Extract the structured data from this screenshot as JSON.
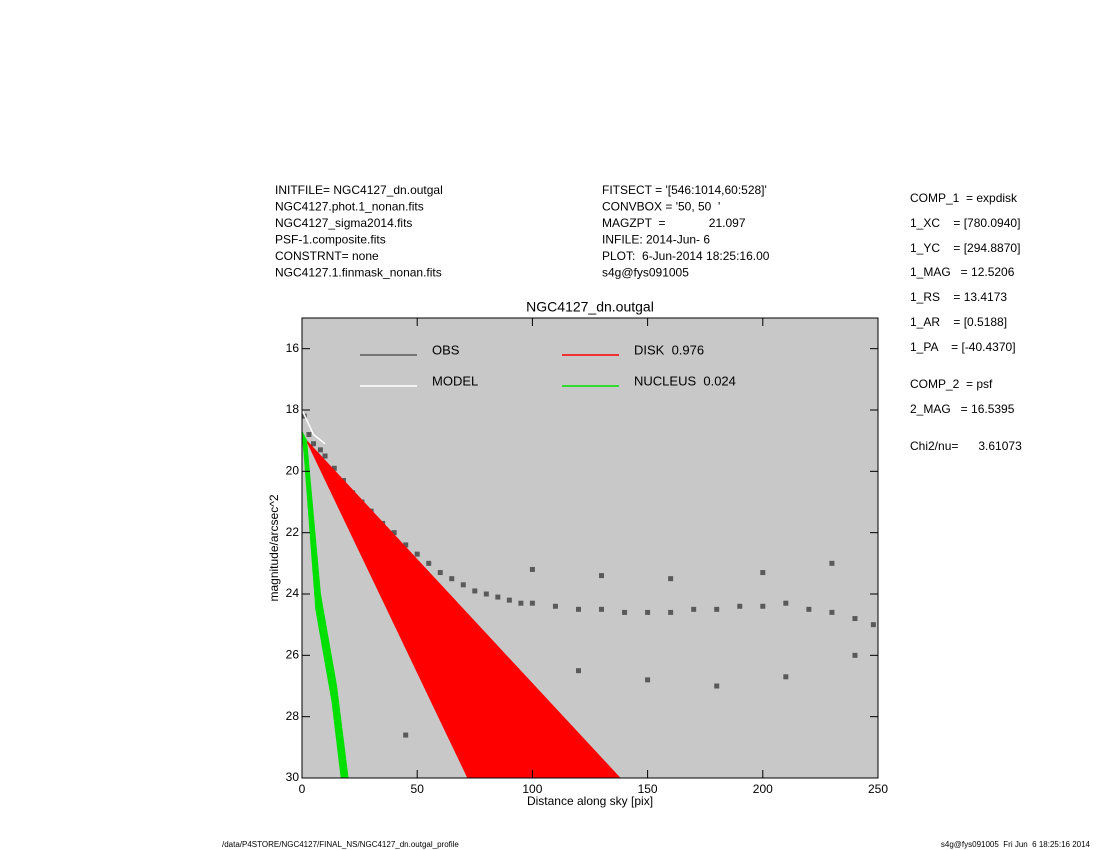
{
  "header": {
    "left": [
      "INITFILE= NGC4127_dn.outgal",
      "NGC4127.phot.1_nonan.fits",
      "NGC4127_sigma2014.fits",
      "PSF-1.composite.fits",
      "CONSTRNT= none",
      "NGC4127.1.finmask_nonan.fits"
    ],
    "middle": [
      "FITSECT = '[546:1014,60:528]'",
      "CONVBOX = '50, 50  '",
      "MAGZPT  =             21.097",
      "INFILE: 2014-Jun- 6",
      "PLOT:  6-Jun-2014 18:25:16.00",
      "s4g@fys091005"
    ],
    "right": [
      "COMP_1  = expdisk",
      "1_XC    = [780.0940]",
      "1_YC    = [294.8870]",
      "1_MAG   = 12.5206",
      "1_RS    = 13.4173",
      "1_AR    = [0.5188]",
      "1_PA    = [-40.4370]",
      "COMP_2  = psf",
      "2_MAG   = 16.5395",
      "Chi2/nu=      3.61073"
    ]
  },
  "footer": {
    "left": "/data/P4STORE/NGC4127/FINAL_NS/NGC4127_dn.outgal_profile",
    "right": "s4g@fys091005  Fri Jun  6 18:25:16 2014"
  },
  "chart_data": {
    "type": "scatter",
    "title": "NGC4127_dn.outgal",
    "x_label": "Distance along sky [pix]",
    "y_label": "magnitude/arcsec^2",
    "xlim": [
      0,
      250
    ],
    "xticks": [
      0,
      50,
      100,
      150,
      200,
      250
    ],
    "ylim": [
      30,
      15
    ],
    "yticks": [
      16,
      18,
      20,
      22,
      24,
      26,
      28,
      30
    ],
    "background": "#c8c8c8",
    "series": [
      {
        "name": "OBS",
        "color": "#5a5a5a",
        "kind": "points",
        "x": [
          1,
          3,
          5,
          8,
          10,
          14,
          18,
          22,
          26,
          30,
          35,
          40,
          45,
          50,
          55,
          60,
          65,
          70,
          75,
          80,
          85,
          90,
          95,
          100,
          110,
          120,
          130,
          140,
          150,
          160,
          170,
          180,
          190,
          200,
          210,
          220,
          230,
          240,
          248,
          120,
          150,
          180,
          210,
          240,
          100,
          130,
          160,
          200,
          230,
          45
        ],
        "values": [
          18.2,
          18.8,
          19.1,
          19.3,
          19.5,
          19.9,
          20.3,
          20.7,
          21.0,
          21.3,
          21.7,
          22.0,
          22.4,
          22.7,
          23.0,
          23.3,
          23.5,
          23.7,
          23.9,
          24.0,
          24.1,
          24.2,
          24.3,
          24.3,
          24.4,
          24.5,
          24.5,
          24.6,
          24.6,
          24.6,
          24.5,
          24.5,
          24.4,
          24.4,
          24.3,
          24.5,
          24.6,
          24.8,
          25.0,
          26.5,
          26.8,
          27.0,
          26.7,
          26.0,
          23.2,
          23.4,
          23.5,
          23.3,
          23.0,
          28.6
        ]
      },
      {
        "name": "MODEL",
        "color": "#ffffff",
        "kind": "line",
        "x": [
          0,
          5,
          10
        ],
        "values": [
          18.0,
          18.8,
          19.1
        ]
      },
      {
        "name": "DISK  0.976",
        "color": "#ff0000",
        "kind": "polygon",
        "x": [
          2,
          72,
          138
        ],
        "values": [
          19.0,
          30.0,
          30.0
        ]
      },
      {
        "name": "NUCLEUS  0.024",
        "color": "#00e000",
        "kind": "polygon",
        "x": [
          0,
          2,
          8,
          15,
          20,
          17,
          13,
          6,
          1
        ],
        "values": [
          18.7,
          19.0,
          24.0,
          27.0,
          30.0,
          30.0,
          27.5,
          24.5,
          19.5
        ]
      }
    ]
  }
}
